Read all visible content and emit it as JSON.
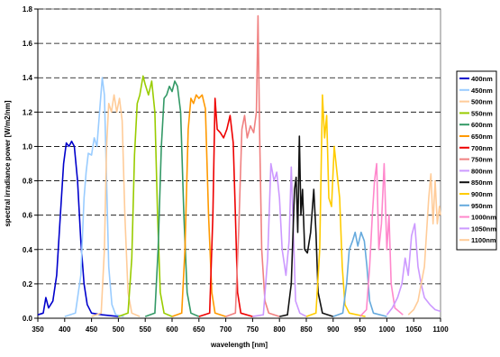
{
  "chart_data": {
    "type": "line",
    "title": "",
    "xlabel": "wavelength [nm]",
    "ylabel": "spectral irradiance power [W/m2/nm]",
    "xlim": [
      350,
      1100
    ],
    "ylim": [
      0,
      1.8
    ],
    "x_ticks": [
      350,
      400,
      450,
      500,
      550,
      600,
      650,
      700,
      750,
      800,
      850,
      900,
      950,
      1000,
      1050,
      1100
    ],
    "y_ticks": [
      0,
      0.2,
      0.4,
      0.6,
      0.8,
      1.0,
      1.2,
      1.4,
      1.6,
      1.8
    ],
    "y_tick_labels": [
      "0.0",
      "0.2",
      "0.4",
      "0.6",
      "0.8",
      "1.0",
      "1.2",
      "1.4",
      "1.6",
      "1.8"
    ],
    "grid": {
      "y_major_dashed": true,
      "x": false
    },
    "legend_position": "right",
    "series": [
      {
        "name": "400nm",
        "color": "#0000cc",
        "points": [
          [
            350,
            0.02
          ],
          [
            360,
            0.03
          ],
          [
            365,
            0.12
          ],
          [
            370,
            0.06
          ],
          [
            378,
            0.1
          ],
          [
            385,
            0.25
          ],
          [
            392,
            0.6
          ],
          [
            398,
            0.9
          ],
          [
            403,
            1.02
          ],
          [
            408,
            1.0
          ],
          [
            413,
            1.03
          ],
          [
            418,
            1.0
          ],
          [
            424,
            0.8
          ],
          [
            430,
            0.45
          ],
          [
            436,
            0.2
          ],
          [
            442,
            0.08
          ],
          [
            450,
            0.03
          ],
          [
            470,
            0.02
          ],
          [
            500,
            0.01
          ]
        ]
      },
      {
        "name": "450nm",
        "color": "#99ccff",
        "points": [
          [
            400,
            0.01
          ],
          [
            420,
            0.03
          ],
          [
            430,
            0.25
          ],
          [
            436,
            0.7
          ],
          [
            440,
            0.85
          ],
          [
            444,
            0.96
          ],
          [
            450,
            0.95
          ],
          [
            455,
            1.05
          ],
          [
            460,
            1.0
          ],
          [
            465,
            1.2
          ],
          [
            470,
            1.4
          ],
          [
            474,
            1.3
          ],
          [
            478,
            0.8
          ],
          [
            482,
            0.3
          ],
          [
            488,
            0.08
          ],
          [
            495,
            0.02
          ],
          [
            510,
            0.01
          ]
        ]
      },
      {
        "name": "500nm",
        "color": "#ffcc99",
        "points": [
          [
            450,
            0.01
          ],
          [
            468,
            0.03
          ],
          [
            474,
            0.4
          ],
          [
            478,
            1.0
          ],
          [
            482,
            1.25
          ],
          [
            487,
            1.2
          ],
          [
            492,
            1.3
          ],
          [
            497,
            1.2
          ],
          [
            502,
            1.28
          ],
          [
            507,
            1.15
          ],
          [
            512,
            0.6
          ],
          [
            518,
            0.15
          ],
          [
            525,
            0.03
          ],
          [
            540,
            0.01
          ]
        ]
      },
      {
        "name": "550nm",
        "color": "#99cc00",
        "points": [
          [
            500,
            0.01
          ],
          [
            518,
            0.03
          ],
          [
            525,
            0.35
          ],
          [
            530,
            0.95
          ],
          [
            535,
            1.25
          ],
          [
            540,
            1.3
          ],
          [
            546,
            1.41
          ],
          [
            550,
            1.36
          ],
          [
            556,
            1.3
          ],
          [
            562,
            1.38
          ],
          [
            568,
            1.2
          ],
          [
            573,
            0.6
          ],
          [
            578,
            0.15
          ],
          [
            585,
            0.03
          ],
          [
            600,
            0.01
          ]
        ]
      },
      {
        "name": "600nm",
        "color": "#339966",
        "points": [
          [
            550,
            0.01
          ],
          [
            568,
            0.03
          ],
          [
            574,
            0.4
          ],
          [
            580,
            1.0
          ],
          [
            585,
            1.28
          ],
          [
            590,
            1.3
          ],
          [
            595,
            1.35
          ],
          [
            600,
            1.32
          ],
          [
            605,
            1.38
          ],
          [
            610,
            1.35
          ],
          [
            616,
            1.2
          ],
          [
            622,
            0.6
          ],
          [
            628,
            0.15
          ],
          [
            635,
            0.03
          ],
          [
            650,
            0.01
          ]
        ]
      },
      {
        "name": "650nm",
        "color": "#ff9900",
        "points": [
          [
            600,
            0.01
          ],
          [
            618,
            0.03
          ],
          [
            624,
            0.4
          ],
          [
            630,
            1.1
          ],
          [
            635,
            1.28
          ],
          [
            640,
            1.25
          ],
          [
            645,
            1.3
          ],
          [
            650,
            1.28
          ],
          [
            656,
            1.3
          ],
          [
            662,
            1.22
          ],
          [
            668,
            0.6
          ],
          [
            674,
            0.15
          ],
          [
            680,
            0.03
          ],
          [
            700,
            0.01
          ]
        ]
      },
      {
        "name": "700nm",
        "color": "#ee0000",
        "points": [
          [
            650,
            0.01
          ],
          [
            670,
            0.03
          ],
          [
            676,
            0.6
          ],
          [
            680,
            1.28
          ],
          [
            684,
            1.1
          ],
          [
            690,
            1.08
          ],
          [
            696,
            1.05
          ],
          [
            702,
            1.1
          ],
          [
            708,
            1.18
          ],
          [
            714,
            1.02
          ],
          [
            718,
            0.6
          ],
          [
            722,
            0.15
          ],
          [
            728,
            0.03
          ],
          [
            750,
            0.01
          ]
        ]
      },
      {
        "name": "750nm",
        "color": "#f08080",
        "points": [
          [
            700,
            0.01
          ],
          [
            718,
            0.03
          ],
          [
            724,
            0.5
          ],
          [
            730,
            1.1
          ],
          [
            735,
            1.18
          ],
          [
            740,
            1.05
          ],
          [
            746,
            1.12
          ],
          [
            752,
            1.08
          ],
          [
            757,
            1.2
          ],
          [
            760,
            1.76
          ],
          [
            763,
            1.1
          ],
          [
            767,
            0.4
          ],
          [
            773,
            0.1
          ],
          [
            780,
            0.03
          ],
          [
            800,
            0.01
          ]
        ]
      },
      {
        "name": "800nm",
        "color": "#cc99ff",
        "points": [
          [
            750,
            0.01
          ],
          [
            770,
            0.02
          ],
          [
            778,
            0.35
          ],
          [
            784,
            0.9
          ],
          [
            790,
            0.8
          ],
          [
            795,
            0.85
          ],
          [
            800,
            0.7
          ],
          [
            805,
            0.4
          ],
          [
            812,
            0.25
          ],
          [
            818,
            0.45
          ],
          [
            822,
            0.88
          ],
          [
            826,
            0.5
          ],
          [
            830,
            0.1
          ],
          [
            838,
            0.03
          ],
          [
            850,
            0.01
          ]
        ]
      },
      {
        "name": "850nm",
        "color": "#111111",
        "points": [
          [
            800,
            0.01
          ],
          [
            815,
            0.02
          ],
          [
            822,
            0.2
          ],
          [
            828,
            0.75
          ],
          [
            831,
            0.82
          ],
          [
            834,
            0.5
          ],
          [
            837,
            1.06
          ],
          [
            840,
            0.6
          ],
          [
            843,
            0.75
          ],
          [
            847,
            0.4
          ],
          [
            852,
            0.38
          ],
          [
            858,
            0.5
          ],
          [
            864,
            0.75
          ],
          [
            868,
            0.5
          ],
          [
            872,
            0.15
          ],
          [
            880,
            0.03
          ],
          [
            900,
            0.01
          ]
        ]
      },
      {
        "name": "900nm",
        "color": "#ffcc00",
        "points": [
          [
            850,
            0.01
          ],
          [
            868,
            0.03
          ],
          [
            875,
            0.4
          ],
          [
            880,
            1.3
          ],
          [
            884,
            1.05
          ],
          [
            888,
            1.18
          ],
          [
            892,
            0.7
          ],
          [
            897,
            0.65
          ],
          [
            902,
            1.0
          ],
          [
            907,
            0.85
          ],
          [
            912,
            0.7
          ],
          [
            917,
            0.3
          ],
          [
            922,
            0.08
          ],
          [
            930,
            0.03
          ],
          [
            960,
            0.01
          ]
        ]
      },
      {
        "name": "950nm",
        "color": "#66aadd",
        "points": [
          [
            900,
            0.01
          ],
          [
            918,
            0.03
          ],
          [
            925,
            0.2
          ],
          [
            930,
            0.4
          ],
          [
            936,
            0.45
          ],
          [
            941,
            0.5
          ],
          [
            946,
            0.42
          ],
          [
            952,
            0.5
          ],
          [
            958,
            0.45
          ],
          [
            963,
            0.3
          ],
          [
            968,
            0.1
          ],
          [
            975,
            0.03
          ],
          [
            1000,
            0.01
          ]
        ]
      },
      {
        "name": "1000nm",
        "color": "#ff88cc",
        "points": [
          [
            950,
            0.01
          ],
          [
            962,
            0.05
          ],
          [
            968,
            0.3
          ],
          [
            973,
            0.6
          ],
          [
            977,
            0.8
          ],
          [
            981,
            0.9
          ],
          [
            985,
            0.4
          ],
          [
            990,
            0.55
          ],
          [
            995,
            0.9
          ],
          [
            1000,
            0.4
          ],
          [
            1004,
            0.6
          ],
          [
            1008,
            0.2
          ],
          [
            1015,
            0.06
          ],
          [
            1030,
            0.02
          ]
        ]
      },
      {
        "name": "1050nm",
        "color": "#cc99ff",
        "points": [
          [
            1000,
            0.02
          ],
          [
            1010,
            0.06
          ],
          [
            1020,
            0.12
          ],
          [
            1028,
            0.2
          ],
          [
            1034,
            0.35
          ],
          [
            1040,
            0.25
          ],
          [
            1046,
            0.48
          ],
          [
            1052,
            0.55
          ],
          [
            1058,
            0.3
          ],
          [
            1064,
            0.2
          ],
          [
            1070,
            0.12
          ],
          [
            1080,
            0.08
          ],
          [
            1090,
            0.05
          ],
          [
            1100,
            0.04
          ]
        ]
      },
      {
        "name": "1100nm",
        "color": "#ffcc99",
        "points": [
          [
            1040,
            0.02
          ],
          [
            1050,
            0.05
          ],
          [
            1058,
            0.1
          ],
          [
            1064,
            0.2
          ],
          [
            1070,
            0.3
          ],
          [
            1074,
            0.5
          ],
          [
            1078,
            0.7
          ],
          [
            1082,
            0.84
          ],
          [
            1086,
            0.55
          ],
          [
            1090,
            0.8
          ],
          [
            1094,
            0.55
          ],
          [
            1098,
            0.65
          ],
          [
            1100,
            0.6
          ]
        ]
      }
    ]
  }
}
